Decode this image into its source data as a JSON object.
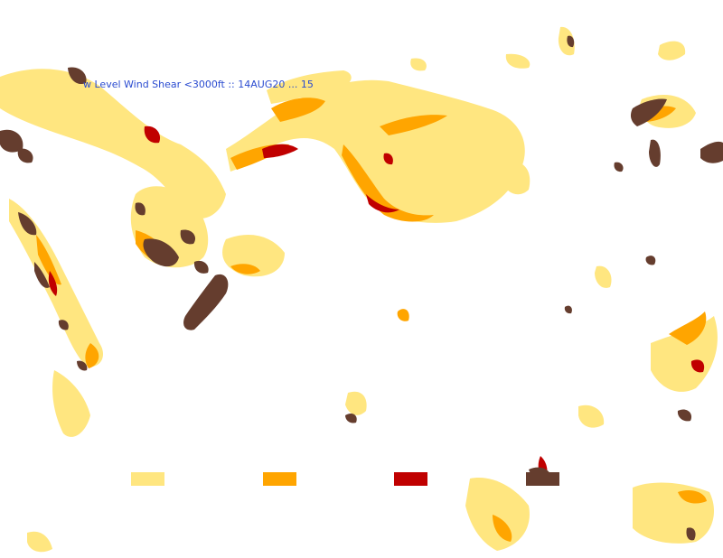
{
  "map": {
    "title": "w Level Wind Shear <3000ft :: 14AUG20 ... 15",
    "layer": "Low Level Wind Shear",
    "legend": [
      {
        "level": 1,
        "color": "#ffe680"
      },
      {
        "level": 2,
        "color": "#ffa500"
      },
      {
        "level": 3,
        "color": "#c00000"
      },
      {
        "level": 4,
        "color": "#653d2e"
      }
    ],
    "colors": {
      "background": "#ffffff",
      "title": "#2a4bd0"
    }
  }
}
